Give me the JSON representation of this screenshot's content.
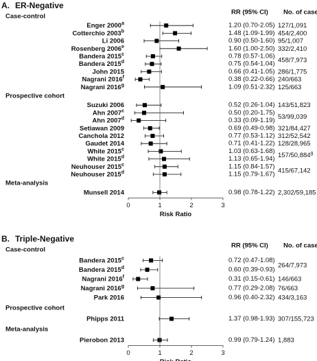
{
  "chart_data": [
    {
      "type": "forest",
      "panel": "A.",
      "title": "ER-Negative",
      "columns": [
        "RR (95% CI)",
        "No. of cases"
      ],
      "xlabel": "Risk Ratio",
      "xlim": [
        0,
        3
      ],
      "xticks": [
        0,
        1,
        2,
        3
      ],
      "color": "#000000",
      "groups": [
        {
          "name": "Case-control",
          "studies": [
            "Enger 2000",
            "Cotterchio 2003",
            "Li 2006",
            "Rosenberg 2006",
            "Bandera 2015",
            "Bandera 2015",
            "John 2015",
            "Nagrani 2016",
            "Nagrani 2016"
          ],
          "sups": [
            "a",
            "b",
            null,
            "e",
            "c",
            "d",
            null,
            "f",
            "g"
          ],
          "values": [
            1.2,
            1.48,
            0.9,
            1.6,
            0.78,
            0.75,
            0.66,
            0.38,
            1.09
          ],
          "lower": [
            0.7,
            1.09,
            0.5,
            1.0,
            0.57,
            0.54,
            0.41,
            0.22,
            0.51
          ],
          "upper": [
            2.05,
            1.99,
            1.6,
            2.5,
            1.06,
            1.04,
            1.05,
            0.66,
            2.32
          ],
          "value_labels": [
            "1.20 (0.70-2.05)",
            "1.48 (1.09-1.99)",
            "0.90 (0.50-1.60)",
            "1.60 (1.00-2.50)",
            "0.78 (0.57-1.06)",
            "0.75 (0.54-1.04)",
            "0.66 (0.41-1.05)",
            "0.38 (0.22-0.66)",
            "1.09 (0.51-2.32)"
          ],
          "cases": [
            "127/1,091",
            "454/2,400",
            "95/1,007",
            "332/2,410",
            "458/7,973",
            null,
            "286/1,775",
            "240/663",
            "125/663"
          ],
          "cases_sup": [
            null,
            null,
            null,
            null,
            null,
            null,
            null,
            null,
            null
          ]
        },
        {
          "name": "Prospective cohort",
          "studies": [
            "Suzuki 2006",
            "Ahn 2007",
            "Ahn 2007",
            "Setiawan 2009",
            "Canchola 2012",
            "Gaudet 2014",
            "White 2015",
            "White 2015",
            "Neuhouser 2015",
            "Neuhouser 2015"
          ],
          "sups": [
            null,
            "c",
            "d",
            null,
            null,
            null,
            "c",
            "d",
            "c",
            "d"
          ],
          "values": [
            0.52,
            0.5,
            0.33,
            0.69,
            0.77,
            0.71,
            1.03,
            1.13,
            1.15,
            1.15
          ],
          "lower": [
            0.26,
            0.2,
            0.09,
            0.49,
            0.53,
            0.41,
            0.63,
            0.65,
            0.84,
            0.79
          ],
          "upper": [
            1.04,
            1.75,
            1.19,
            0.98,
            1.12,
            1.22,
            1.68,
            1.94,
            1.57,
            1.67
          ],
          "value_labels": [
            "0.52 (0.26-1.04)",
            "0.50 (0.20-1.75)",
            "0.33 (0.09-1.19)",
            "0.69 (0.49-0.98)",
            "0.77 (0.53-1.12)",
            "0.71 (0.41-1.22)",
            "1.03 (0.63-1.68)",
            "1.13 (0.65-1.94)",
            "1.15 (0.84-1.57)",
            "1.15 (0.79-1.67)"
          ],
          "cases": [
            "143/51,823",
            "53/99,039",
            null,
            "321/84,427",
            "312/52,542",
            "128/28,965",
            "157/50,884",
            null,
            "415/67,142",
            null
          ],
          "cases_sup": [
            null,
            null,
            null,
            null,
            null,
            null,
            "g",
            null,
            null,
            null
          ]
        },
        {
          "name": "Meta-analysis",
          "studies": [
            "Munsell 2014"
          ],
          "sups": [
            null
          ],
          "values": [
            0.98
          ],
          "lower": [
            0.78
          ],
          "upper": [
            1.22
          ],
          "value_labels": [
            "0.98 (0.78-1.22)"
          ],
          "cases": [
            "2,302/59,185"
          ],
          "cases_sup": [
            null
          ]
        }
      ]
    },
    {
      "type": "forest",
      "panel": "B.",
      "title": "Triple-Negative",
      "columns": [
        "RR (95% CI)",
        "No. of cases"
      ],
      "xlabel": "Risk Ratio",
      "xlim": [
        0,
        3
      ],
      "xticks": [
        0,
        1,
        2,
        3
      ],
      "color": "#000000",
      "groups": [
        {
          "name": "Case-control",
          "studies": [
            "Bandera 2015",
            "Bandera 2015",
            "Nagrani 2016",
            "Nagrani 2016",
            "Park 2016"
          ],
          "sups": [
            "c",
            "d",
            "f",
            "g",
            null
          ],
          "values": [
            0.72,
            0.6,
            0.31,
            0.77,
            0.96
          ],
          "lower": [
            0.47,
            0.39,
            0.15,
            0.29,
            0.4
          ],
          "upper": [
            1.08,
            0.93,
            0.61,
            2.08,
            2.32
          ],
          "value_labels": [
            "0.72 (0.47-1.08)",
            "0.60 (0.39-0.93)",
            "0.31 (0.15-0.61)",
            "0.77 (0.29-2.08)",
            "0.96 (0.40-2.32)"
          ],
          "cases": [
            "264/7,973",
            null,
            "146/663",
            "76/663",
            "434/3,163"
          ],
          "cases_sup": [
            null,
            null,
            null,
            null,
            null
          ]
        },
        {
          "name": "Prospective cohort",
          "studies": [
            "Phipps 2011"
          ],
          "sups": [
            null
          ],
          "values": [
            1.37
          ],
          "lower": [
            0.98
          ],
          "upper": [
            1.93
          ],
          "value_labels": [
            "1.37 (0.98-1.93)"
          ],
          "cases": [
            "307/155,723"
          ],
          "cases_sup": [
            null
          ]
        },
        {
          "name": "Meta-analysis",
          "studies": [
            "Pierobon 2013"
          ],
          "sups": [
            null
          ],
          "values": [
            0.99
          ],
          "lower": [
            0.79
          ],
          "upper": [
            1.24
          ],
          "value_labels": [
            "0.99 (0.79-1.24)"
          ],
          "cases": [
            "1,883"
          ],
          "cases_sup": [
            null
          ]
        }
      ]
    }
  ]
}
